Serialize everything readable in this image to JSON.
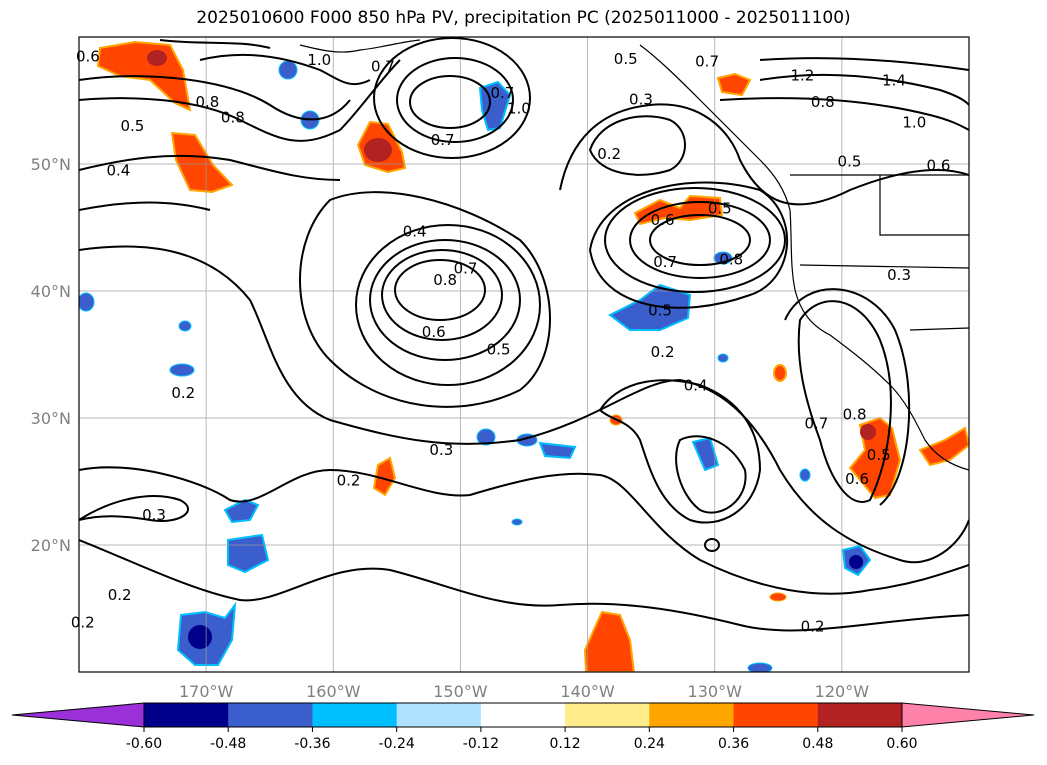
{
  "title": "2025010600 F000 850 hPa PV, precipitation PC (2025011000 - 2025011100)",
  "map": {
    "lon_range": [
      -180,
      -110
    ],
    "lat_range": [
      10,
      60
    ],
    "lat_ticks": [
      {
        "value": 20,
        "label": "20°N"
      },
      {
        "value": 30,
        "label": "30°N"
      },
      {
        "value": 40,
        "label": "40°N"
      },
      {
        "value": 50,
        "label": "50°N"
      }
    ],
    "lon_ticks": [
      {
        "value": -170,
        "label": "170°W"
      },
      {
        "value": -160,
        "label": "160°W"
      },
      {
        "value": -150,
        "label": "150°W"
      },
      {
        "value": -140,
        "label": "140°W"
      },
      {
        "value": -130,
        "label": "130°W"
      },
      {
        "value": -120,
        "label": "120°W"
      }
    ],
    "grid": true,
    "contour_color": "#000000",
    "contour_labels": [
      {
        "text": "0.6",
        "lon": -179.3,
        "lat": 58.4
      },
      {
        "text": "1.0",
        "lon": -161.1,
        "lat": 58.1
      },
      {
        "text": "0.7",
        "lon": -156.1,
        "lat": 57.6
      },
      {
        "text": "0.8",
        "lon": -169.9,
        "lat": 54.8
      },
      {
        "text": "0.8",
        "lon": -167.9,
        "lat": 53.6
      },
      {
        "text": "0.5",
        "lon": -175.8,
        "lat": 52.9
      },
      {
        "text": "0.4",
        "lon": -176.9,
        "lat": 49.4
      },
      {
        "text": "0.7",
        "lon": -146.7,
        "lat": 55.5
      },
      {
        "text": "1.0",
        "lon": -145.4,
        "lat": 54.3
      },
      {
        "text": "0.7",
        "lon": -151.4,
        "lat": 51.8
      },
      {
        "text": "0.5",
        "lon": -137.0,
        "lat": 58.2
      },
      {
        "text": "0.7",
        "lon": -130.6,
        "lat": 58.0
      },
      {
        "text": "0.3",
        "lon": -135.8,
        "lat": 55.0
      },
      {
        "text": "0.2",
        "lon": -138.3,
        "lat": 50.7
      },
      {
        "text": "1.2",
        "lon": -123.1,
        "lat": 56.9
      },
      {
        "text": "1.4",
        "lon": -115.9,
        "lat": 56.5
      },
      {
        "text": "0.8",
        "lon": -121.5,
        "lat": 54.8
      },
      {
        "text": "1.0",
        "lon": -114.3,
        "lat": 53.2
      },
      {
        "text": "0.5",
        "lon": -119.4,
        "lat": 50.1
      },
      {
        "text": "0.6",
        "lon": -112.4,
        "lat": 49.8
      },
      {
        "text": "0.4",
        "lon": -153.6,
        "lat": 44.6
      },
      {
        "text": "0.7",
        "lon": -149.6,
        "lat": 41.7
      },
      {
        "text": "0.8",
        "lon": -151.2,
        "lat": 40.8
      },
      {
        "text": "0.6",
        "lon": -152.1,
        "lat": 36.7
      },
      {
        "text": "0.5",
        "lon": -147.0,
        "lat": 35.3
      },
      {
        "text": "0.6",
        "lon": -134.1,
        "lat": 45.5
      },
      {
        "text": "0.5",
        "lon": -129.6,
        "lat": 46.4
      },
      {
        "text": "0.7",
        "lon": -133.9,
        "lat": 42.2
      },
      {
        "text": "0.8",
        "lon": -128.7,
        "lat": 42.4
      },
      {
        "text": "0.5",
        "lon": -134.3,
        "lat": 38.4
      },
      {
        "text": "0.3",
        "lon": -115.5,
        "lat": 41.2
      },
      {
        "text": "0.2",
        "lon": -134.1,
        "lat": 35.1
      },
      {
        "text": "0.4",
        "lon": -131.5,
        "lat": 32.5
      },
      {
        "text": "0.2",
        "lon": -171.8,
        "lat": 31.9
      },
      {
        "text": "0.7",
        "lon": -122.0,
        "lat": 29.5
      },
      {
        "text": "0.8",
        "lon": -119.0,
        "lat": 30.2
      },
      {
        "text": "0.5",
        "lon": -117.1,
        "lat": 27.0
      },
      {
        "text": "0.6",
        "lon": -118.8,
        "lat": 25.1
      },
      {
        "text": "0.3",
        "lon": -151.5,
        "lat": 27.4
      },
      {
        "text": "0.2",
        "lon": -158.8,
        "lat": 25.0
      },
      {
        "text": "0.3",
        "lon": -174.1,
        "lat": 22.3
      },
      {
        "text": "0.2",
        "lon": -176.8,
        "lat": 16.0
      },
      {
        "text": "0.2",
        "lon": -179.7,
        "lat": 13.8
      },
      {
        "text": "0.2",
        "lon": -122.3,
        "lat": 13.5
      }
    ]
  },
  "colorbar": {
    "levels": [
      "-0.60",
      "-0.48",
      "-0.36",
      "-0.24",
      "-0.12",
      "0.12",
      "0.24",
      "0.36",
      "0.48",
      "0.60"
    ],
    "colors": [
      "#9b30d9",
      "#00008b",
      "#3a5fcd",
      "#00bfff",
      "#b0e2ff",
      "#ffffff",
      "#ffec8b",
      "#ffa500",
      "#ff4500",
      "#b22222",
      "#ff82ab"
    ]
  }
}
